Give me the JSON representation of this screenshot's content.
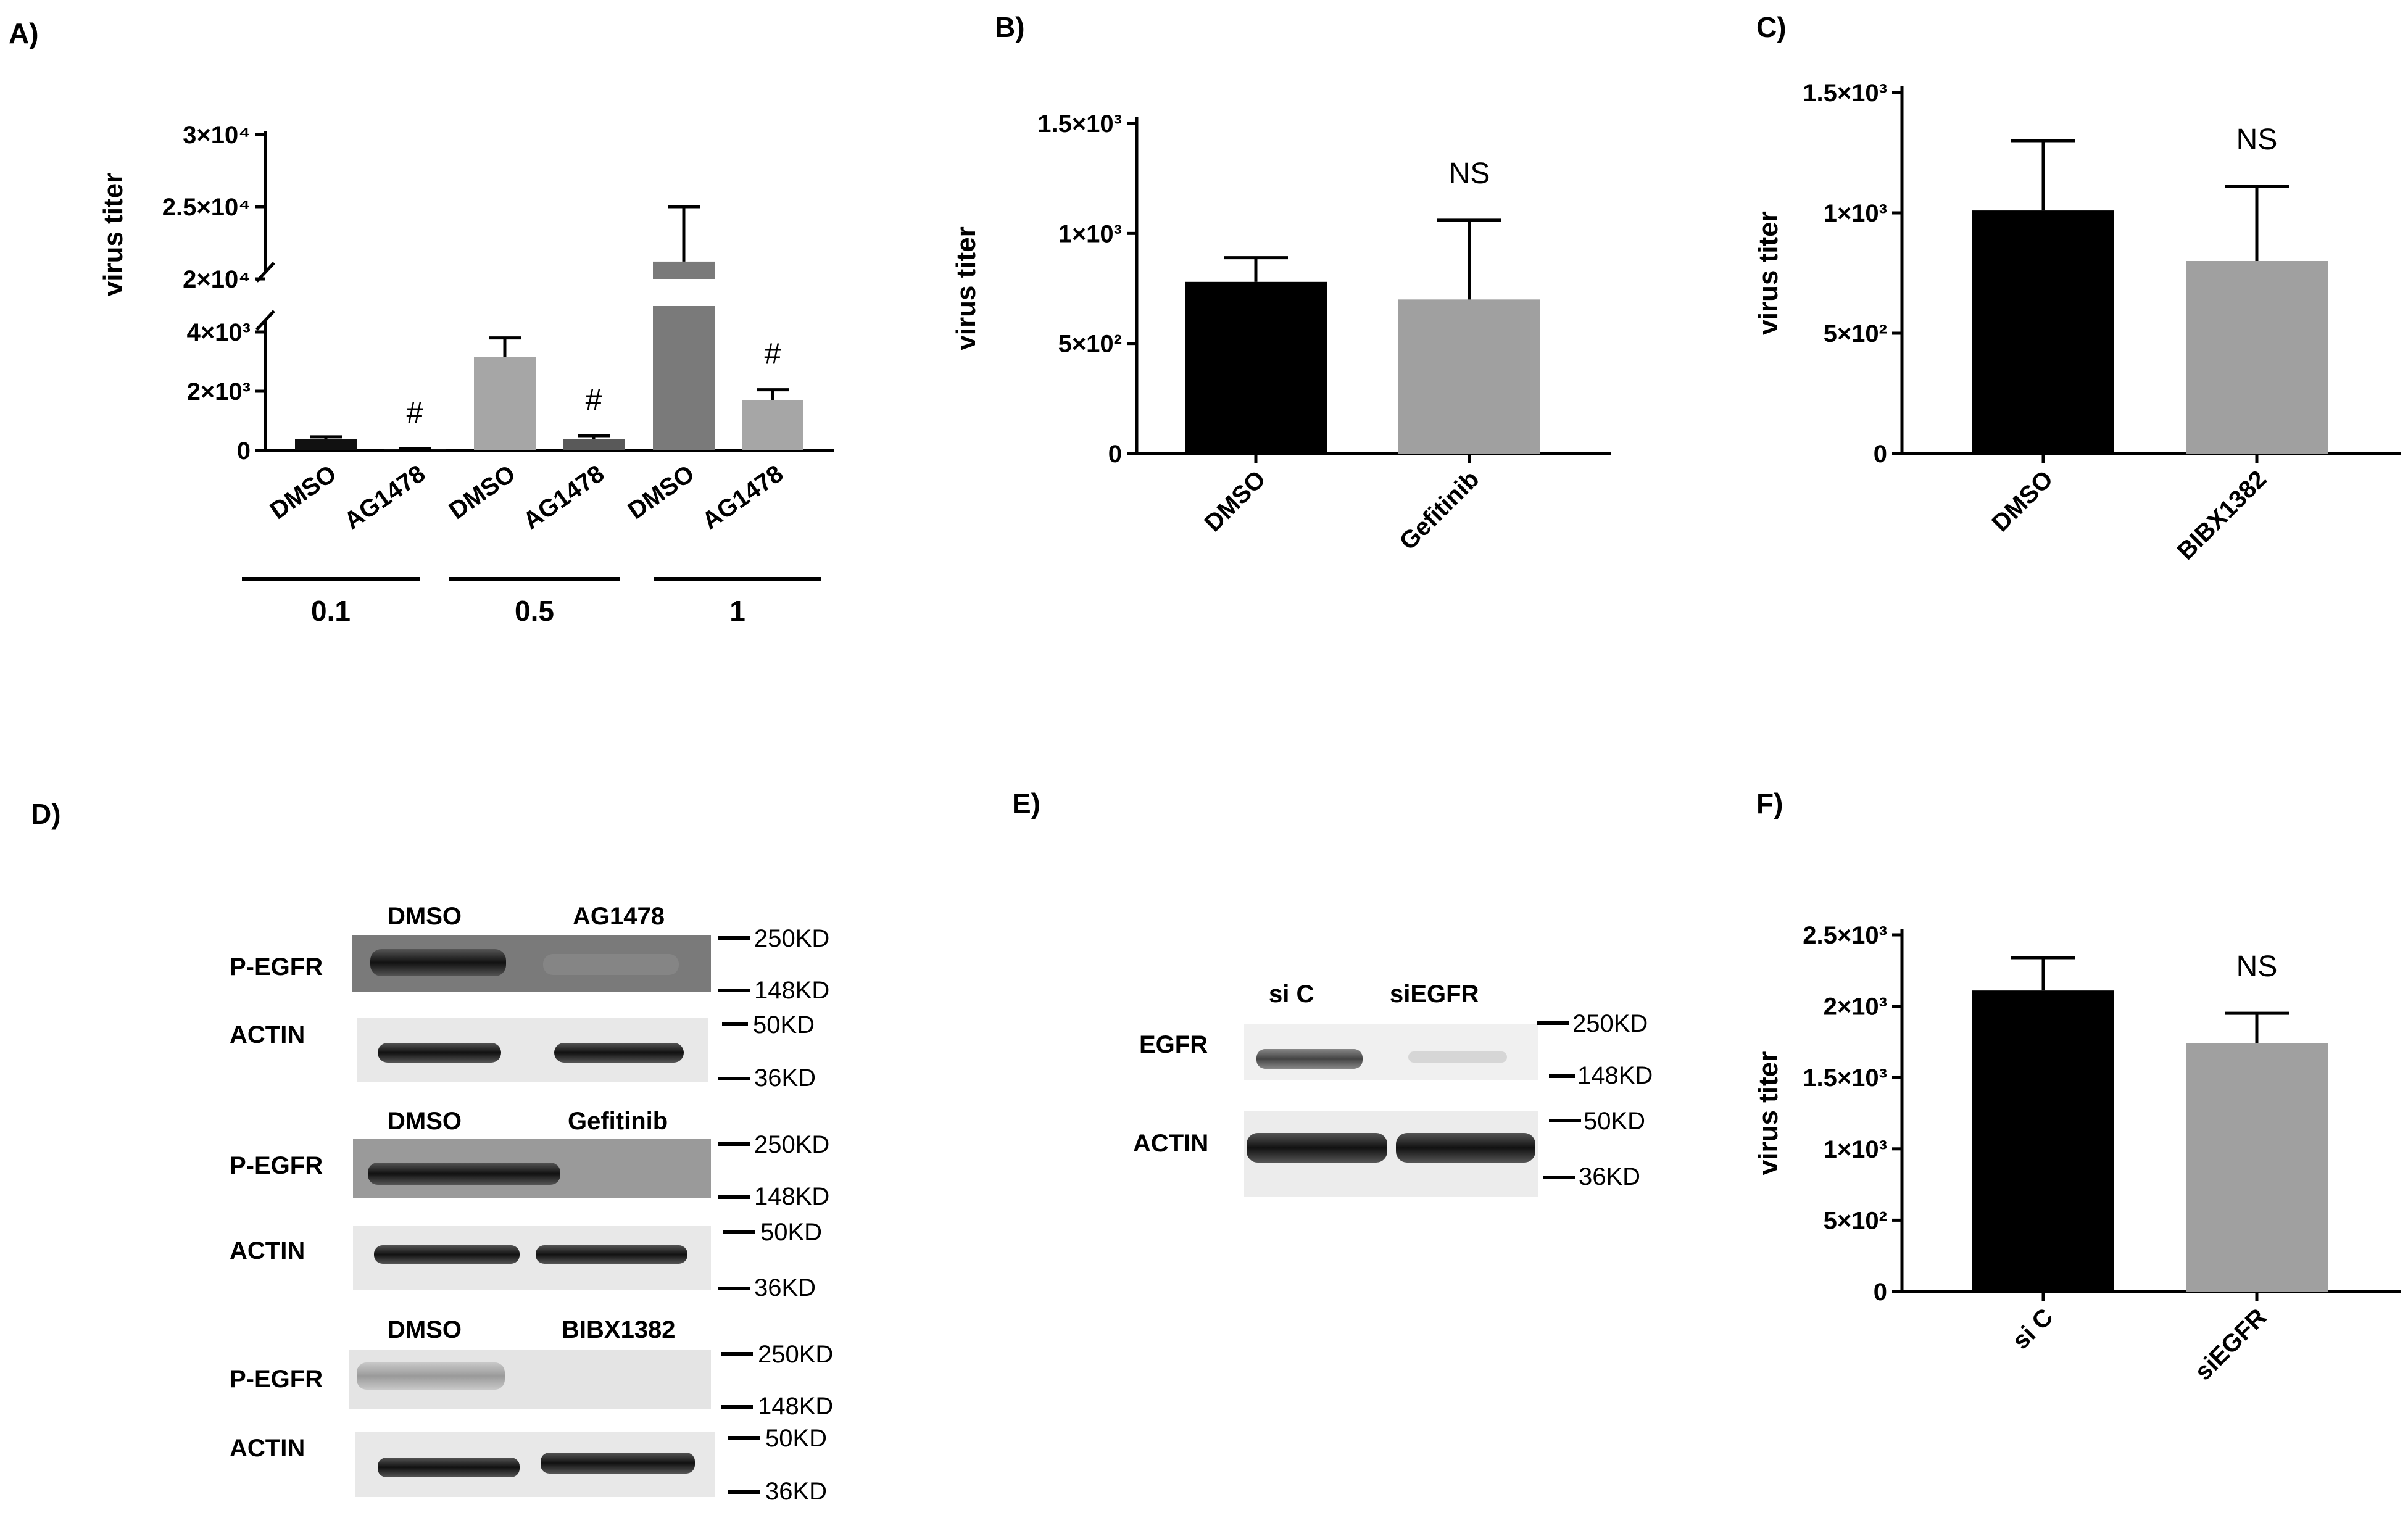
{
  "panels": {
    "A": "A)",
    "B": "B)",
    "C": "C)",
    "D": "D)",
    "E": "E)",
    "F": "F)"
  },
  "chart_data": [
    {
      "panel": "A",
      "type": "bar",
      "ylabel": "virus titer",
      "broken_axis": true,
      "y_lower_range": [
        0,
        4000
      ],
      "y_upper_range": [
        20000,
        30000
      ],
      "yticks_lower": [
        "0",
        "2×10³",
        "4×10³"
      ],
      "yticks_upper": [
        "2×10⁴",
        "2.5×10⁴",
        "3×10⁴"
      ],
      "categories": [
        "DMSO",
        "AG1478",
        "DMSO",
        "AG1478",
        "DMSO",
        "AG1478"
      ],
      "groups": [
        "0.1",
        "0.5",
        "1"
      ],
      "values": [
        380,
        40,
        3150,
        380,
        21200,
        1700
      ],
      "errors": [
        80,
        20,
        650,
        120,
        3800,
        350
      ],
      "annotations": [
        "",
        "#",
        "",
        "#",
        "",
        "#"
      ],
      "colors": [
        "#111111",
        "#111111",
        "#a6a6a6",
        "#595959",
        "#7a7a7a",
        "#a6a6a6"
      ]
    },
    {
      "panel": "B",
      "type": "bar",
      "ylabel": "virus titer",
      "ylim": [
        0,
        1500
      ],
      "yticks": [
        "0",
        "5×10²",
        "1×10³",
        "1.5×10³"
      ],
      "categories": [
        "DMSO",
        "Gefitinib"
      ],
      "values": [
        780,
        700
      ],
      "errors": [
        110,
        360
      ],
      "annotation": "NS",
      "colors": [
        "#000000",
        "#a0a0a0"
      ]
    },
    {
      "panel": "C",
      "type": "bar",
      "ylabel": "virus titer",
      "ylim": [
        0,
        1500
      ],
      "yticks": [
        "0",
        "5×10²",
        "1×10³",
        "1.5×10³"
      ],
      "categories": [
        "DMSO",
        "BIBX1382"
      ],
      "values": [
        1010,
        800
      ],
      "errors": [
        290,
        310
      ],
      "annotation": "NS",
      "colors": [
        "#000000",
        "#a0a0a0"
      ]
    },
    {
      "panel": "F",
      "type": "bar",
      "ylabel": "virus titer",
      "ylim": [
        0,
        2500
      ],
      "yticks": [
        "0",
        "5×10²",
        "1×10³",
        "1.5×10³",
        "2×10³",
        "2.5×10³"
      ],
      "categories": [
        "si C",
        "siEGFR"
      ],
      "values": [
        2110,
        1740
      ],
      "errors": [
        230,
        210
      ],
      "annotation": "NS",
      "colors": [
        "#000000",
        "#a0a0a0"
      ]
    }
  ],
  "blots": {
    "D": [
      {
        "lanes": [
          "DMSO",
          "AG1478"
        ],
        "rows": [
          "P-EGFR",
          "ACTIN"
        ],
        "markers": [
          "250KD",
          "148KD",
          "50KD",
          "36KD"
        ]
      },
      {
        "lanes": [
          "DMSO",
          "Gefitinib"
        ],
        "rows": [
          "P-EGFR",
          "ACTIN"
        ],
        "markers": [
          "250KD",
          "148KD",
          "50KD",
          "36KD"
        ]
      },
      {
        "lanes": [
          "DMSO",
          "BIBX1382"
        ],
        "rows": [
          "P-EGFR",
          "ACTIN"
        ],
        "markers": [
          "250KD",
          "148KD",
          "50KD",
          "36KD"
        ]
      }
    ],
    "E": {
      "lanes": [
        "si C",
        "siEGFR"
      ],
      "rows": [
        "EGFR",
        "ACTIN"
      ],
      "markers": [
        "250KD",
        "148KD",
        "50KD",
        "36KD"
      ]
    }
  }
}
